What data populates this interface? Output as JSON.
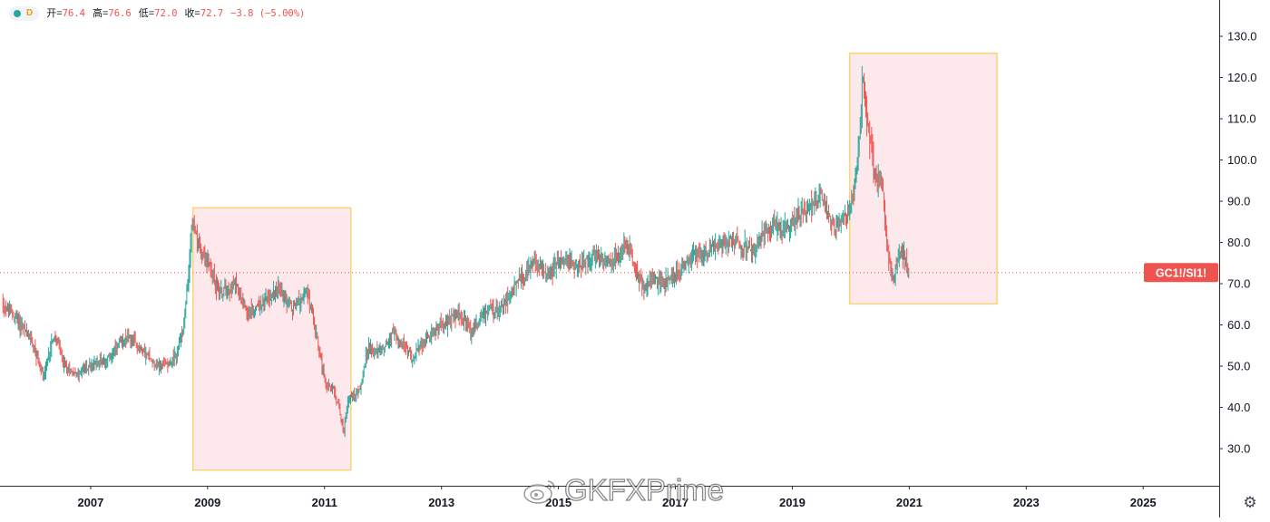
{
  "legend": {
    "interval": "D",
    "open_label": "开=",
    "open": "76.4",
    "high_label": "高=",
    "high": "76.6",
    "low_label": "低=",
    "low": "72.0",
    "close_label": "收=",
    "close": "72.7",
    "change": "−3.8 (−5.00%)"
  },
  "watermark": {
    "text": "GKFXPrime"
  },
  "colors": {
    "up": "#26a69a",
    "down": "#ef5350",
    "highlight_fill": "#fde9ec",
    "highlight_border": "#f6d57a",
    "price_line": "#ef5350",
    "axis_text": "#131722"
  },
  "chart_data": {
    "type": "candlestick",
    "symbol_label": "GC1!/SI1!",
    "last_price": 72.7,
    "x_range": [
      2005.45,
      2026.3
    ],
    "ylim": [
      21.0,
      138.8
    ],
    "y_ticks": [
      "30.0",
      "40.0",
      "50.0",
      "60.0",
      "70.0",
      "80.0",
      "90.0",
      "100.0",
      "110.0",
      "120.0",
      "130.0"
    ],
    "x_ticks": [
      "2007",
      "2009",
      "2011",
      "2013",
      "2015",
      "2017",
      "2019",
      "2021",
      "2023",
      "2025"
    ],
    "grid": false,
    "highlights": [
      {
        "x0": 2008.75,
        "x1": 2011.45,
        "y0": 24.8,
        "y1": 88.4
      },
      {
        "x0": 2019.98,
        "x1": 2022.5,
        "y0": 65.1,
        "y1": 125.9
      }
    ],
    "series": [
      {
        "x": [
          2005.5,
          2005.75,
          2006.0,
          2006.2,
          2006.35,
          2006.45,
          2006.55,
          2006.75,
          2007.0,
          2007.3,
          2007.6,
          2007.8,
          2008.0,
          2008.2,
          2008.45,
          2008.6,
          2008.68,
          2008.73,
          2008.8,
          2008.88,
          2009.0,
          2009.2,
          2009.5,
          2009.7,
          2010.0,
          2010.2,
          2010.45,
          2010.7,
          2010.9,
          2011.0,
          2011.15,
          2011.25,
          2011.33,
          2011.4,
          2011.6,
          2011.75,
          2011.9,
          2012.2,
          2012.5,
          2012.75,
          2013.0,
          2013.3,
          2013.5,
          2013.75,
          2014.0,
          2014.3,
          2014.6,
          2014.85,
          2015.0,
          2015.3,
          2015.6,
          2015.9,
          2016.15,
          2016.3,
          2016.45,
          2016.6,
          2016.8,
          2017.0,
          2017.3,
          2017.6,
          2018.0,
          2018.3,
          2018.6,
          2018.8,
          2019.0,
          2019.3,
          2019.5,
          2019.6,
          2019.7,
          2019.9,
          2020.05,
          2020.15,
          2020.2,
          2020.25,
          2020.32,
          2020.4,
          2020.55,
          2020.65,
          2020.72,
          2020.78,
          2020.85,
          2020.95,
          2021.0
        ],
        "y": [
          65.0,
          61.0,
          56.0,
          47.0,
          57.0,
          55.0,
          50.0,
          48.0,
          50.0,
          52.0,
          57.0,
          55.0,
          52.0,
          50.0,
          52.0,
          60.0,
          74.0,
          85.0,
          81.0,
          78.0,
          75.0,
          68.0,
          70.0,
          63.0,
          66.0,
          69.0,
          64.0,
          68.0,
          55.0,
          46.0,
          44.0,
          40.0,
          34.0,
          42.0,
          44.0,
          55.0,
          53.0,
          58.0,
          52.0,
          57.0,
          60.0,
          63.0,
          58.0,
          63.0,
          64.0,
          70.0,
          75.0,
          72.0,
          76.0,
          74.0,
          77.0,
          75.0,
          80.0,
          74.0,
          69.0,
          71.0,
          70.0,
          72.0,
          77.0,
          78.0,
          81.0,
          77.0,
          84.0,
          83.0,
          85.0,
          89.0,
          92.0,
          86.0,
          84.0,
          86.0,
          92.0,
          105.0,
          120.0,
          112.0,
          105.0,
          98.0,
          92.0,
          76.0,
          70.0,
          74.0,
          78.0,
          75.0,
          72.7
        ]
      }
    ]
  }
}
